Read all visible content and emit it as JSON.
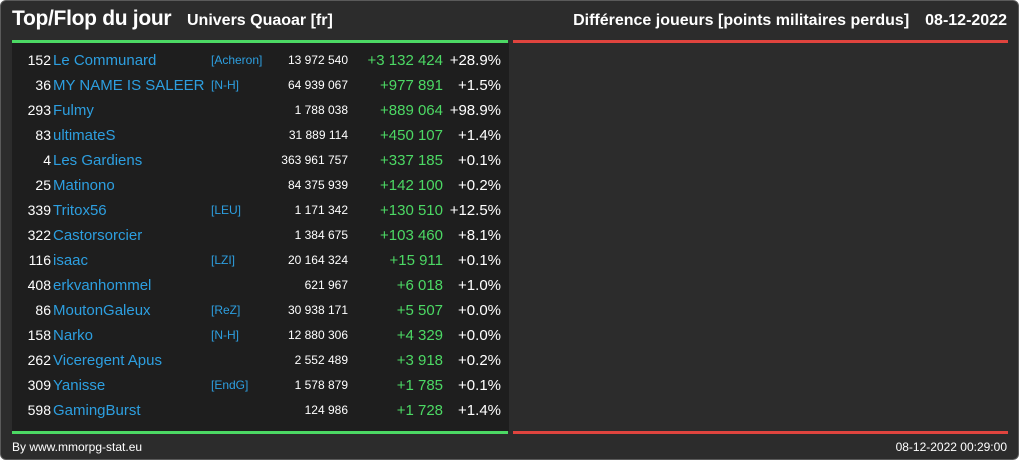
{
  "header": {
    "title": "Top/Flop du jour",
    "subtitle": "Univers Quaoar [fr]",
    "right_label": "Différence joueurs [points militaires perdus]",
    "date": "08-12-2022"
  },
  "colors": {
    "background": "#2c2c2c",
    "list_background": "#1e1e1e",
    "top_accent": "#4cd964",
    "flop_accent": "#e0443e",
    "link": "#2d9fe0",
    "positive": "#4cd964"
  },
  "top_rows": [
    {
      "rank": "152",
      "name": "Le Communard",
      "alliance": "[Acheron]",
      "points": "13 972 540",
      "diff": "+3 132 424",
      "pct": "+28.9%"
    },
    {
      "rank": "36",
      "name": "MY NAME IS SALEER",
      "alliance": "[N-H]",
      "points": "64 939 067",
      "diff": "+977 891",
      "pct": "+1.5%"
    },
    {
      "rank": "293",
      "name": "Fulmy",
      "alliance": "",
      "points": "1 788 038",
      "diff": "+889 064",
      "pct": "+98.9%"
    },
    {
      "rank": "83",
      "name": "ultimateS",
      "alliance": "",
      "points": "31 889 114",
      "diff": "+450 107",
      "pct": "+1.4%"
    },
    {
      "rank": "4",
      "name": "Les Gardiens",
      "alliance": "",
      "points": "363 961 757",
      "diff": "+337 185",
      "pct": "+0.1%"
    },
    {
      "rank": "25",
      "name": "Matinono",
      "alliance": "",
      "points": "84 375 939",
      "diff": "+142 100",
      "pct": "+0.2%"
    },
    {
      "rank": "339",
      "name": "Tritox56",
      "alliance": "[LEU]",
      "points": "1 171 342",
      "diff": "+130 510",
      "pct": "+12.5%"
    },
    {
      "rank": "322",
      "name": "Castorsorcier",
      "alliance": "",
      "points": "1 384 675",
      "diff": "+103 460",
      "pct": "+8.1%"
    },
    {
      "rank": "116",
      "name": "isaac",
      "alliance": "[LZI]",
      "points": "20 164 324",
      "diff": "+15 911",
      "pct": "+0.1%"
    },
    {
      "rank": "408",
      "name": "erkvanhommel",
      "alliance": "",
      "points": "621 967",
      "diff": "+6 018",
      "pct": "+1.0%"
    },
    {
      "rank": "86",
      "name": "MoutonGaleux",
      "alliance": "[ReZ]",
      "points": "30 938 171",
      "diff": "+5 507",
      "pct": "+0.0%"
    },
    {
      "rank": "158",
      "name": "Narko",
      "alliance": "[N-H]",
      "points": "12 880 306",
      "diff": "+4 329",
      "pct": "+0.0%"
    },
    {
      "rank": "262",
      "name": "Viceregent Apus",
      "alliance": "",
      "points": "2 552 489",
      "diff": "+3 918",
      "pct": "+0.2%"
    },
    {
      "rank": "309",
      "name": "Yanisse",
      "alliance": "[EndG]",
      "points": "1 578 879",
      "diff": "+1 785",
      "pct": "+0.1%"
    },
    {
      "rank": "598",
      "name": "GamingBurst",
      "alliance": "",
      "points": "124 986",
      "diff": "+1 728",
      "pct": "+1.4%"
    }
  ],
  "flop_rows": [],
  "footer": {
    "source": "By www.mmorpg-stat.eu",
    "timestamp": "08-12-2022 00:29:00"
  }
}
